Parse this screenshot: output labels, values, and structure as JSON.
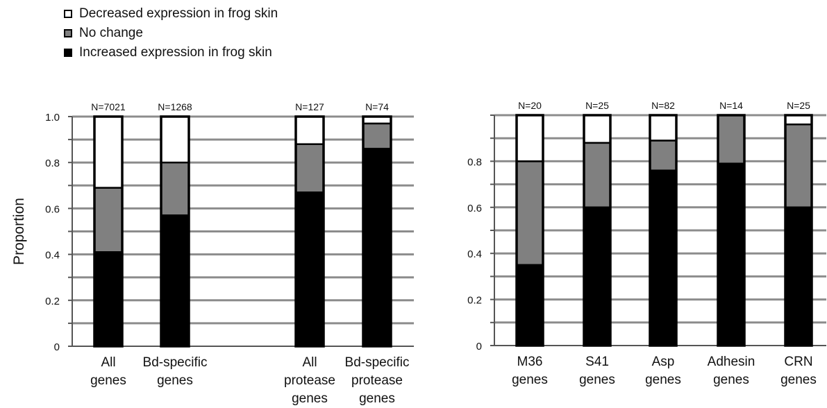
{
  "legend": {
    "items": [
      {
        "label": "Decreased expression in frog skin",
        "color": "#ffffff"
      },
      {
        "label": "No change",
        "color": "#808080"
      },
      {
        "label": "Increased expression in frog skin",
        "color": "#000000"
      }
    ]
  },
  "colors": {
    "decreased": "#ffffff",
    "no_change": "#808080",
    "increased": "#000000",
    "grid": "#8c8c8c"
  },
  "chart_data": [
    {
      "type": "bar",
      "stacked": true,
      "ylabel": "Proportion",
      "ylim": [
        0,
        1.0
      ],
      "yticks": [
        "0",
        "0.2",
        "0.4",
        "0.6",
        "0.8",
        "1.0"
      ],
      "grid": true,
      "categories": [
        [
          "All",
          "genes"
        ],
        [
          "Bd-specific",
          "genes"
        ],
        [
          "All",
          "protease",
          "genes"
        ],
        [
          "Bd-specific",
          "protease",
          "genes"
        ]
      ],
      "n_labels": [
        "N=7021",
        "N=1268",
        "N=127",
        "N=74"
      ],
      "series": [
        {
          "name": "Increased expression in frog skin",
          "values": [
            0.41,
            0.57,
            0.67,
            0.86
          ]
        },
        {
          "name": "No change",
          "values": [
            0.28,
            0.23,
            0.21,
            0.11
          ]
        },
        {
          "name": "Decreased expression in frog skin",
          "values": [
            0.31,
            0.2,
            0.12,
            0.03
          ]
        }
      ]
    },
    {
      "type": "bar",
      "stacked": true,
      "ylabel": "",
      "ylim": [
        0,
        1.0
      ],
      "yticks": [
        "0",
        "0.2",
        "0.4",
        "0.6",
        "0.8"
      ],
      "grid": true,
      "categories": [
        [
          "M36",
          "genes"
        ],
        [
          "S41",
          "genes"
        ],
        [
          "Asp",
          "genes"
        ],
        [
          "Adhesin",
          "genes"
        ],
        [
          "CRN",
          "genes"
        ]
      ],
      "n_labels": [
        "N=20",
        "N=25",
        "N=82",
        "N=14",
        "N=25"
      ],
      "series": [
        {
          "name": "Increased expression in frog skin",
          "values": [
            0.35,
            0.6,
            0.76,
            0.79,
            0.6
          ]
        },
        {
          "name": "No change",
          "values": [
            0.45,
            0.28,
            0.13,
            0.21,
            0.36
          ]
        },
        {
          "name": "Decreased expression in frog skin",
          "values": [
            0.2,
            0.12,
            0.11,
            0.0,
            0.04
          ]
        }
      ]
    }
  ]
}
